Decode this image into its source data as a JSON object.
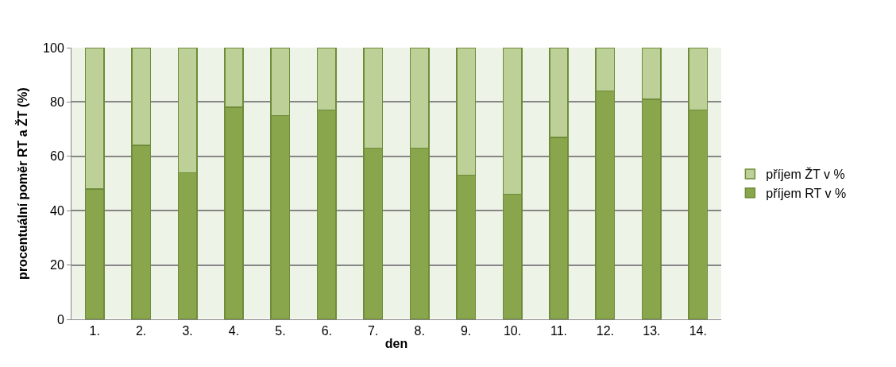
{
  "chart_data": {
    "type": "bar",
    "stacked": true,
    "xlabel": "den",
    "ylabel": "procentuální poměr RT a ŽT (%)",
    "categories": [
      "1.",
      "2.",
      "3.",
      "4.",
      "5.",
      "6.",
      "7.",
      "8.",
      "9.",
      "10.",
      "11.",
      "12.",
      "13.",
      "14."
    ],
    "series": [
      {
        "name": "příjem RT v %",
        "color": "#8aa64c",
        "values": [
          48,
          64,
          54,
          78,
          75,
          77,
          63,
          63,
          53,
          46,
          67,
          84,
          81,
          77
        ]
      },
      {
        "name": "příjem ŽT v %",
        "color": "#bcd098",
        "values": [
          52,
          36,
          46,
          22,
          25,
          23,
          37,
          37,
          47,
          54,
          33,
          16,
          19,
          23
        ]
      }
    ],
    "ylim": [
      0,
      100
    ],
    "yticks": [
      0,
      20,
      40,
      60,
      80,
      100
    ],
    "grid": "y",
    "legend": "right"
  }
}
